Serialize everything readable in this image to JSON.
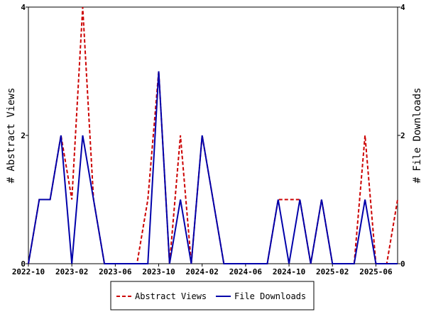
{
  "chart_data": {
    "type": "line",
    "title": "",
    "xlabel": "",
    "ylabel": "# Abstract Views",
    "y2label": "# File Downloads",
    "ylim": [
      0,
      4
    ],
    "y2lim": [
      0,
      4
    ],
    "y_ticks": [
      0,
      2,
      4
    ],
    "y2_ticks": [
      0,
      2,
      4
    ],
    "x": [
      "2022-10",
      "2022-11",
      "2022-12",
      "2023-01",
      "2023-02",
      "2023-03",
      "2023-04",
      "2023-05",
      "2023-06",
      "2023-07",
      "2023-08",
      "2023-09",
      "2023-10",
      "2023-11",
      "2023-12",
      "2024-01",
      "2024-02",
      "2024-03",
      "2024-04",
      "2024-05",
      "2024-06",
      "2024-07",
      "2024-08",
      "2024-09",
      "2024-10",
      "2024-11",
      "2024-12",
      "2025-01",
      "2025-02",
      "2025-03",
      "2025-04",
      "2025-05",
      "2025-06",
      "2025-07",
      "2025-08"
    ],
    "x_tick_labels": [
      "2022-10",
      "2023-02",
      "2023-06",
      "2023-10",
      "2024-02",
      "2024-06",
      "2024-10",
      "2025-02",
      "2025-06"
    ],
    "grid": false,
    "legend_position": "bottom",
    "series": [
      {
        "name": "Abstract Views",
        "color": "#cc0000",
        "dash": "dashed",
        "axis": "left",
        "values": [
          0,
          1,
          1,
          2,
          1,
          4,
          1,
          0,
          0,
          0,
          0,
          1,
          3,
          0,
          2,
          0,
          2,
          1,
          0,
          0,
          0,
          0,
          0,
          1,
          1,
          1,
          0,
          1,
          0,
          0,
          0,
          2,
          0,
          0,
          1
        ]
      },
      {
        "name": "File Downloads",
        "color": "#0000aa",
        "dash": "solid",
        "axis": "right",
        "values": [
          0,
          1,
          1,
          2,
          0,
          2,
          1,
          0,
          0,
          0,
          0,
          0,
          3,
          0,
          1,
          0,
          2,
          1,
          0,
          0,
          0,
          0,
          0,
          1,
          0,
          1,
          0,
          1,
          0,
          0,
          0,
          1,
          0,
          0,
          0
        ]
      }
    ]
  }
}
